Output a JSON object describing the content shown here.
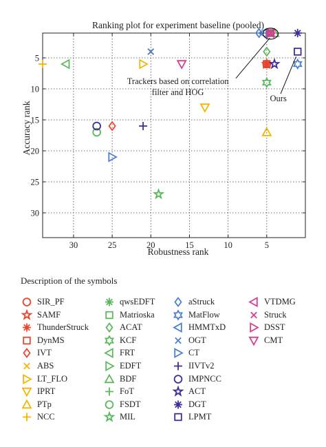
{
  "chart_data": {
    "type": "scatter",
    "title": "Ranking plot for experiment baseline (pooled)",
    "xlabel": "Robustness rank",
    "ylabel": "Accuracy rank",
    "xlim": [
      34,
      0
    ],
    "ylim": [
      34,
      1
    ],
    "x_reversed": true,
    "y_reversed": true,
    "xticks": [
      30,
      25,
      20,
      15,
      10,
      5
    ],
    "yticks": [
      5,
      10,
      15,
      20,
      25,
      30
    ],
    "grid": true,
    "legend_placement": "below",
    "annotations": [
      {
        "text": "Trackers based on correlation",
        "x": 16.5,
        "y": 9.2
      },
      {
        "text": "filter and HOG",
        "x": 16.5,
        "y": 11.0
      },
      {
        "text": "Ours",
        "x": 3.5,
        "y": 12.0
      }
    ],
    "series": [
      {
        "name": "SIR_PF",
        "marker": "circle",
        "color": "#e8452e",
        "x": [
          5
        ],
        "y": [
          6
        ]
      },
      {
        "name": "SAMF",
        "marker": "star",
        "color": "#e8452e",
        "x": [
          5
        ],
        "y": [
          6
        ]
      },
      {
        "name": "ThunderStruck",
        "marker": "asterisk",
        "color": "#e8452e",
        "x": [
          5
        ],
        "y": [
          6
        ]
      },
      {
        "name": "DynMS",
        "marker": "square",
        "color": "#e8452e",
        "x": [
          5
        ],
        "y": [
          6
        ]
      },
      {
        "name": "IVT",
        "marker": "diamond",
        "color": "#e8452e",
        "x": [
          25
        ],
        "y": [
          16
        ]
      },
      {
        "name": "ABS",
        "marker": "cross",
        "color": "#f5b400",
        "x": [
          20
        ],
        "y": [
          4
        ]
      },
      {
        "name": "LT_FLO",
        "marker": "triangle-right",
        "color": "#f5b400",
        "x": [
          21
        ],
        "y": [
          6
        ]
      },
      {
        "name": "IPRT",
        "marker": "triangle-down",
        "color": "#f5b400",
        "x": [
          13
        ],
        "y": [
          13
        ]
      },
      {
        "name": "PTp",
        "marker": "triangle-up",
        "color": "#f5b400",
        "x": [
          5
        ],
        "y": [
          17
        ]
      },
      {
        "name": "NCC",
        "marker": "plus",
        "color": "#f5b400",
        "x": [
          34
        ],
        "y": [
          6
        ]
      },
      {
        "name": "qwsEDFT",
        "marker": "asterisk",
        "color": "#5cb85c",
        "x": [
          4.5
        ],
        "y": [
          1
        ]
      },
      {
        "name": "Matrioska",
        "marker": "square",
        "color": "#5cb85c",
        "x": [
          4.5
        ],
        "y": [
          1
        ]
      },
      {
        "name": "ACAT",
        "marker": "diamond",
        "color": "#5cb85c",
        "x": [
          5
        ],
        "y": [
          4
        ]
      },
      {
        "name": "KCF",
        "marker": "hexagram",
        "color": "#5cb85c",
        "x": [
          5
        ],
        "y": [
          9
        ]
      },
      {
        "name": "FRT",
        "marker": "triangle-left",
        "color": "#5cb85c",
        "x": [
          31
        ],
        "y": [
          6
        ]
      },
      {
        "name": "EDFT",
        "marker": "triangle-right",
        "color": "#5cb85c",
        "x": [
          4.5
        ],
        "y": [
          1
        ]
      },
      {
        "name": "BDF",
        "marker": "triangle-up",
        "color": "#5cb85c",
        "x": [
          4
        ],
        "y": [
          1
        ]
      },
      {
        "name": "FoT",
        "marker": "plus",
        "color": "#5cb85c",
        "x": [
          4.5
        ],
        "y": [
          1
        ]
      },
      {
        "name": "FSDT",
        "marker": "circle",
        "color": "#5cb85c",
        "x": [
          27
        ],
        "y": [
          17
        ]
      },
      {
        "name": "MIL",
        "marker": "star",
        "color": "#5cb85c",
        "x": [
          19
        ],
        "y": [
          27
        ]
      },
      {
        "name": "aStruck",
        "marker": "diamond",
        "color": "#4a7fd4",
        "x": [
          6
        ],
        "y": [
          1
        ]
      },
      {
        "name": "MatFlow",
        "marker": "hexagram",
        "color": "#4a7fd4",
        "x": [
          1
        ],
        "y": [
          6
        ]
      },
      {
        "name": "HMMTxD",
        "marker": "triangle-left",
        "color": "#4a7fd4",
        "x": [
          5.5
        ],
        "y": [
          1
        ]
      },
      {
        "name": "OGT",
        "marker": "cross",
        "color": "#4a7fd4",
        "x": [
          20
        ],
        "y": [
          4
        ]
      },
      {
        "name": "CT",
        "marker": "triangle-right",
        "color": "#4a7fd4",
        "x": [
          25
        ],
        "y": [
          21
        ]
      },
      {
        "name": "IIVTv2",
        "marker": "plus",
        "color": "#3a2f9a",
        "x": [
          21
        ],
        "y": [
          16
        ]
      },
      {
        "name": "IMPNCC",
        "marker": "circle",
        "color": "#3a2f9a",
        "x": [
          27
        ],
        "y": [
          16
        ]
      },
      {
        "name": "ACT",
        "marker": "star",
        "color": "#3a2f9a",
        "x": [
          4
        ],
        "y": [
          6
        ]
      },
      {
        "name": "DGT",
        "marker": "asterisk",
        "color": "#3a2f9a",
        "x": [
          1
        ],
        "y": [
          1
        ]
      },
      {
        "name": "LPMT",
        "marker": "square",
        "color": "#3a2f9a",
        "x": [
          1
        ],
        "y": [
          4
        ]
      },
      {
        "name": "VTDMG",
        "marker": "triangle-left",
        "color": "#d63c8f",
        "x": [
          4.5
        ],
        "y": [
          1
        ]
      },
      {
        "name": "Struck",
        "marker": "cross",
        "color": "#d63c8f",
        "x": [
          4.5
        ],
        "y": [
          1
        ]
      },
      {
        "name": "DSST",
        "marker": "triangle-right",
        "color": "#d63c8f",
        "x": [
          4.5
        ],
        "y": [
          1
        ]
      },
      {
        "name": "CMT",
        "marker": "triangle-down",
        "color": "#d63c8f",
        "x": [
          16
        ],
        "y": [
          6
        ]
      }
    ]
  },
  "legend": {
    "title": "Description of the symbols",
    "columns": [
      [
        "SIR_PF",
        "SAMF",
        "ThunderStruck",
        "DynMS",
        "IVT",
        "ABS",
        "LT_FLO",
        "IPRT",
        "PTp",
        "NCC"
      ],
      [
        "qwsEDFT",
        "Matrioska",
        "ACAT",
        "KCF",
        "FRT",
        "EDFT",
        "BDF",
        "FoT",
        "FSDT",
        "MIL"
      ],
      [
        "aStruck",
        "MatFlow",
        "HMMTxD",
        "OGT",
        "CT",
        "IIVTv2",
        "IMPNCC",
        "ACT",
        "DGT",
        "LPMT"
      ],
      [
        "VTDMG",
        "Struck",
        "DSST",
        "CMT"
      ]
    ]
  }
}
